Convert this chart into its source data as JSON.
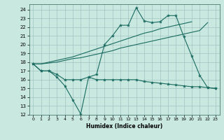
{
  "bg_color": "#c8e8e0",
  "line_color": "#1a6b60",
  "xlabel": "Humidex (Indice chaleur)",
  "xlim": [
    -0.5,
    23.5
  ],
  "ylim": [
    12,
    24.6
  ],
  "yticks": [
    12,
    13,
    14,
    15,
    16,
    17,
    18,
    19,
    20,
    21,
    22,
    23,
    24
  ],
  "xticks": [
    0,
    1,
    2,
    3,
    4,
    5,
    6,
    7,
    8,
    9,
    10,
    11,
    12,
    13,
    14,
    15,
    16,
    17,
    18,
    19,
    20,
    21,
    22,
    23
  ],
  "line1_x": [
    0,
    1,
    2,
    3,
    4,
    5,
    6,
    7,
    8,
    9,
    10,
    11,
    12,
    13,
    14,
    15,
    16,
    17,
    18,
    19,
    20,
    21,
    22,
    23
  ],
  "line1_y": [
    17.8,
    17.0,
    17.0,
    16.3,
    15.3,
    13.7,
    12.1,
    16.3,
    16.6,
    20.0,
    21.0,
    22.2,
    22.2,
    24.2,
    22.7,
    22.5,
    22.6,
    23.3,
    23.3,
    20.9,
    18.7,
    16.5,
    15.1,
    15.0
  ],
  "line2_x": [
    0,
    1,
    2,
    3,
    4,
    5,
    6,
    7,
    8,
    9,
    10,
    11,
    12,
    13,
    14,
    15,
    16,
    17,
    18,
    19,
    20,
    21,
    22,
    23
  ],
  "line2_y": [
    17.8,
    17.0,
    17.0,
    16.6,
    16.0,
    16.0,
    16.0,
    16.3,
    16.0,
    16.0,
    16.0,
    16.0,
    16.0,
    16.0,
    15.8,
    15.7,
    15.6,
    15.5,
    15.4,
    15.3,
    15.2,
    15.2,
    15.1,
    15.0
  ],
  "line3_x": [
    0,
    1,
    2,
    3,
    4,
    5,
    6,
    7,
    8,
    9,
    10,
    11,
    12,
    13,
    14,
    15,
    16,
    17,
    18,
    19,
    20,
    21,
    22
  ],
  "line3_y": [
    17.8,
    17.8,
    17.9,
    18.0,
    18.2,
    18.4,
    18.5,
    18.7,
    18.9,
    19.1,
    19.3,
    19.6,
    19.8,
    20.0,
    20.2,
    20.4,
    20.6,
    20.8,
    21.0,
    21.2,
    21.4,
    21.6,
    22.5
  ],
  "line4_x": [
    0,
    1,
    2,
    3,
    4,
    5,
    6,
    7,
    8,
    9,
    10,
    11,
    12,
    13,
    14,
    15,
    16,
    17,
    18,
    19,
    20
  ],
  "line4_y": [
    17.8,
    17.8,
    18.0,
    18.2,
    18.4,
    18.6,
    18.9,
    19.2,
    19.5,
    19.8,
    20.1,
    20.4,
    20.7,
    21.0,
    21.3,
    21.5,
    21.8,
    22.0,
    22.2,
    22.4,
    22.6
  ]
}
